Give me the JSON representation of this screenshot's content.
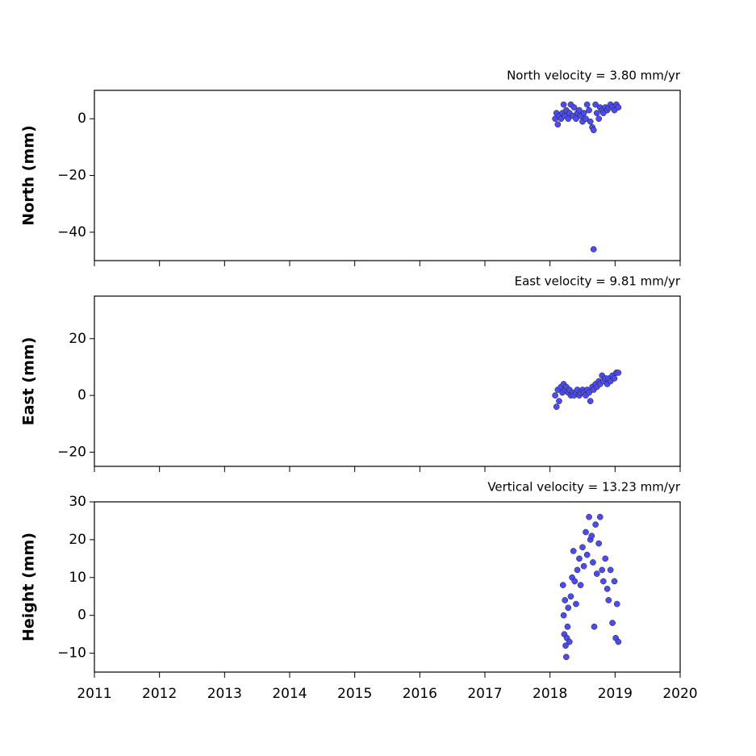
{
  "chart_data": [
    {
      "type": "scatter",
      "title": "North velocity = 3.80 mm/yr",
      "ylabel": "North (mm)",
      "color": "#4b4bf0",
      "x": [
        2018.08,
        2018.1,
        2018.12,
        2018.14,
        2018.17,
        2018.19,
        2018.21,
        2018.23,
        2018.25,
        2018.28,
        2018.3,
        2018.32,
        2018.35,
        2018.37,
        2018.4,
        2018.42,
        2018.45,
        2018.47,
        2018.5,
        2018.52,
        2018.55,
        2018.57,
        2018.6,
        2018.62,
        2018.65,
        2018.67,
        2018.7,
        2018.72,
        2018.75,
        2018.77,
        2018.8,
        2018.82,
        2018.85,
        2018.88,
        2018.9,
        2018.93,
        2018.96,
        2018.99,
        2019.02,
        2019.05,
        2018.67
      ],
      "values": [
        0,
        2,
        -2,
        1,
        0,
        2,
        5,
        1,
        3,
        0,
        2,
        5,
        1,
        4,
        0,
        2,
        3,
        1,
        -1,
        2,
        0,
        5,
        3,
        -1,
        -3,
        -4,
        5,
        2,
        0,
        4,
        3,
        2,
        4,
        3,
        4,
        5,
        4,
        3,
        5,
        4,
        -46
      ],
      "xlim": [
        2011,
        2020
      ],
      "xticks": [
        2011,
        2012,
        2013,
        2014,
        2015,
        2016,
        2017,
        2018,
        2019,
        2020
      ],
      "ylim": [
        -50,
        10
      ],
      "yticks": [
        {
          "value": -40,
          "label": "−40"
        },
        {
          "value": -20,
          "label": "−20"
        },
        0
      ]
    },
    {
      "type": "scatter",
      "title": "East velocity = 9.81 mm/yr",
      "ylabel": "East (mm)",
      "color": "#4b4bf0",
      "x": [
        2018.08,
        2018.1,
        2018.12,
        2018.14,
        2018.17,
        2018.19,
        2018.21,
        2018.23,
        2018.25,
        2018.28,
        2018.3,
        2018.32,
        2018.35,
        2018.37,
        2018.4,
        2018.42,
        2018.45,
        2018.47,
        2018.5,
        2018.52,
        2018.55,
        2018.57,
        2018.6,
        2018.62,
        2018.65,
        2018.67,
        2018.7,
        2018.72,
        2018.75,
        2018.77,
        2018.8,
        2018.82,
        2018.85,
        2018.88,
        2018.9,
        2018.93,
        2018.96,
        2018.99,
        2019.02,
        2019.05
      ],
      "values": [
        0,
        -4,
        2,
        -2,
        3,
        1,
        4,
        2,
        3,
        1,
        2,
        0,
        1,
        0,
        1,
        2,
        0,
        1,
        2,
        1,
        0,
        2,
        1,
        -2,
        3,
        2,
        4,
        3,
        5,
        4,
        7,
        5,
        6,
        4,
        6,
        5,
        7,
        6,
        8,
        8
      ],
      "xlim": [
        2011,
        2020
      ],
      "xticks": [
        2011,
        2012,
        2013,
        2014,
        2015,
        2016,
        2017,
        2018,
        2019,
        2020
      ],
      "ylim": [
        -25,
        35
      ],
      "yticks": [
        {
          "value": -20,
          "label": "−20"
        },
        0,
        20
      ]
    },
    {
      "type": "scatter",
      "title": "Vertical velocity = 13.23 mm/yr",
      "ylabel": "Height (mm)",
      "color": "#4b4bf0",
      "x": [
        2018.2,
        2018.21,
        2018.22,
        2018.23,
        2018.24,
        2018.25,
        2018.26,
        2018.27,
        2018.28,
        2018.3,
        2018.32,
        2018.34,
        2018.36,
        2018.38,
        2018.4,
        2018.42,
        2018.45,
        2018.47,
        2018.5,
        2018.52,
        2018.55,
        2018.57,
        2018.6,
        2018.62,
        2018.64,
        2018.66,
        2018.68,
        2018.7,
        2018.72,
        2018.75,
        2018.77,
        2018.8,
        2018.82,
        2018.85,
        2018.88,
        2018.9,
        2018.93,
        2018.96,
        2018.99,
        2019.01,
        2019.03,
        2019.05
      ],
      "values": [
        8,
        0,
        -5,
        4,
        -8,
        -11,
        -6,
        -3,
        2,
        -7,
        5,
        10,
        17,
        9,
        3,
        12,
        15,
        8,
        18,
        13,
        22,
        16,
        26,
        20,
        21,
        14,
        -3,
        24,
        11,
        19,
        26,
        12,
        9,
        15,
        7,
        4,
        12,
        -2,
        9,
        -6,
        3,
        -7
      ],
      "xlim": [
        2011,
        2020
      ],
      "xticks": [
        2011,
        2012,
        2013,
        2014,
        2015,
        2016,
        2017,
        2018,
        2019,
        2020
      ],
      "ylim": [
        -15,
        30
      ],
      "yticks": [
        {
          "value": -10,
          "label": "−10"
        },
        0,
        10,
        20,
        30
      ]
    }
  ]
}
